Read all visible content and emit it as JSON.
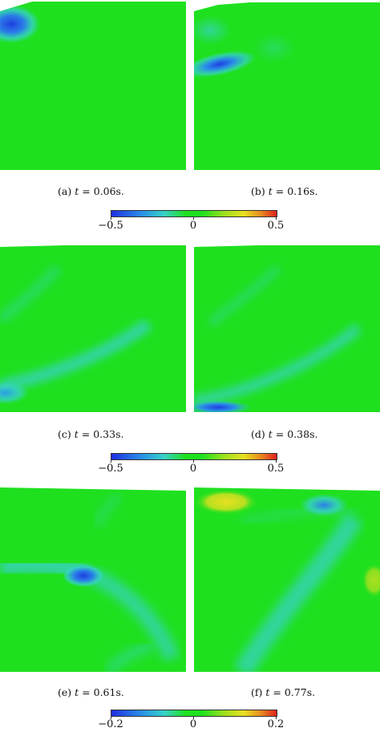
{
  "panels": [
    {
      "id": "a",
      "label": "(a)",
      "time": "0.06s."
    },
    {
      "id": "b",
      "label": "(b)",
      "time": "0.16s."
    },
    {
      "id": "c",
      "label": "(c)",
      "time": "0.33s."
    },
    {
      "id": "d",
      "label": "(d)",
      "time": "0.38s."
    },
    {
      "id": "e",
      "label": "(e)",
      "time": "0.61s."
    },
    {
      "id": "f",
      "label": "(f)",
      "time": "0.77s."
    }
  ],
  "time_symbol": "t",
  "equals": "=",
  "colorbars": [
    {
      "min": "−0.5",
      "mid": "0",
      "max": "0.5"
    },
    {
      "min": "−0.5",
      "mid": "0",
      "max": "0.5"
    },
    {
      "min": "−0.2",
      "mid": "0",
      "max": "0.2"
    }
  ],
  "colors": {
    "field": "#1fe01f",
    "blue": "#1f3fe0",
    "cyan": "#37d2c8",
    "yellow": "#e8e020",
    "red": "#e01f1f"
  }
}
